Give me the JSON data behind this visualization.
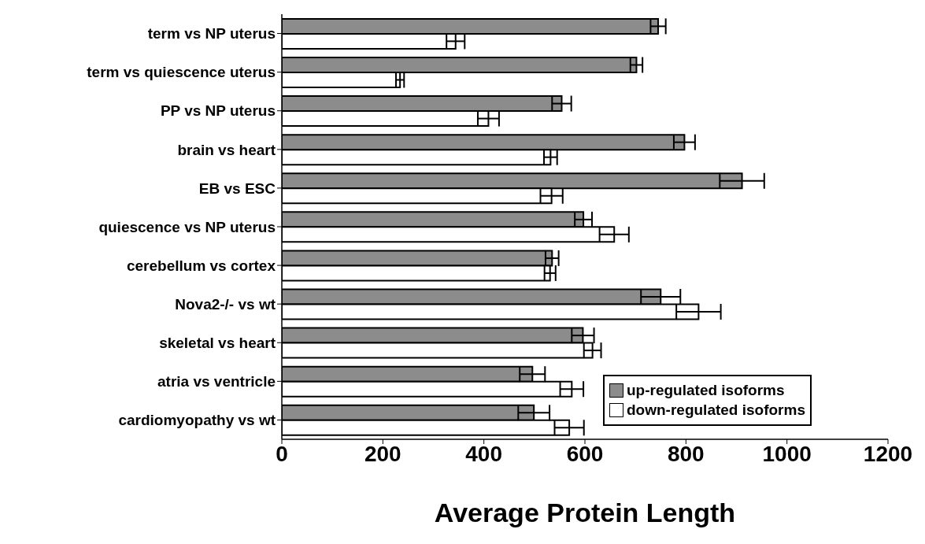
{
  "chart_data": {
    "type": "bar",
    "orientation": "horizontal",
    "xlabel": "Average Protein Length",
    "categories": [
      "term vs NP uterus",
      "term vs quiescence uterus",
      "PP vs NP uterus",
      "brain vs heart",
      "EB vs ESC",
      "quiescence vs NP uterus",
      "cerebellum vs cortex",
      "Nova2-/- vs wt",
      "skeletal vs heart",
      "atria vs ventricle",
      "cardiomyopathy vs wt"
    ],
    "series": [
      {
        "name": "up-regulated isoforms",
        "color": "#8c8c8c",
        "values": [
          745,
          702,
          554,
          797,
          911,
          597,
          535,
          750,
          596,
          496,
          499
        ],
        "errors": [
          15,
          12,
          19,
          21,
          44,
          17,
          13,
          39,
          22,
          25,
          31
        ]
      },
      {
        "name": "down-regulated isoforms",
        "color": "#ffffff",
        "values": [
          344,
          234,
          409,
          532,
          534,
          658,
          531,
          825,
          615,
          574,
          569
        ],
        "errors": [
          18,
          8,
          21,
          13,
          22,
          29,
          11,
          44,
          17,
          23,
          29
        ]
      }
    ],
    "xlim": [
      0,
      1200
    ],
    "xticks": [
      0,
      200,
      400,
      600,
      800,
      1000,
      1200
    ],
    "legend": "bottom right"
  }
}
